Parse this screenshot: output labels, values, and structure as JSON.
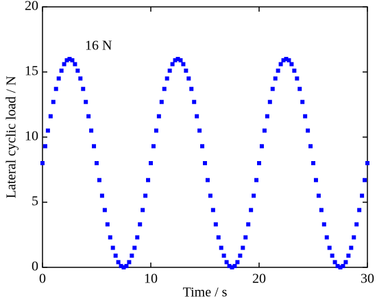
{
  "chart_data": {
    "type": "scatter",
    "x_label": "Time / s",
    "y_label": "Lateral cyclic load / N",
    "annotation": "16 N",
    "xlim": [
      0,
      30
    ],
    "xticks": [
      0,
      10,
      20,
      30
    ],
    "ylim": [
      0,
      20
    ],
    "yticks": [
      0,
      5,
      10,
      15,
      20
    ],
    "color": "#0000ff",
    "x": [
      0,
      0.25,
      0.5,
      0.75,
      1,
      1.25,
      1.5,
      1.75,
      2,
      2.25,
      2.5,
      2.75,
      3,
      3.25,
      3.5,
      3.75,
      4,
      4.25,
      4.5,
      4.75,
      5,
      5.25,
      5.5,
      5.75,
      6,
      6.25,
      6.5,
      6.75,
      7,
      7.25,
      7.5,
      7.75,
      8,
      8.25,
      8.5,
      8.75,
      9,
      9.25,
      9.5,
      9.75,
      10,
      10.25,
      10.5,
      10.75,
      11,
      11.25,
      11.5,
      11.75,
      12,
      12.25,
      12.5,
      12.75,
      13,
      13.25,
      13.5,
      13.75,
      14,
      14.25,
      14.5,
      14.75,
      15,
      15.25,
      15.5,
      15.75,
      16,
      16.25,
      16.5,
      16.75,
      17,
      17.25,
      17.5,
      17.75,
      18,
      18.25,
      18.5,
      18.75,
      19,
      19.25,
      19.5,
      19.75,
      20,
      20.25,
      20.5,
      20.75,
      21,
      21.25,
      21.5,
      21.75,
      22,
      22.25,
      22.5,
      22.75,
      23,
      23.25,
      23.5,
      23.75,
      24,
      24.25,
      24.5,
      24.75,
      25,
      25.25,
      25.5,
      25.75,
      26,
      26.25,
      26.5,
      26.75,
      27,
      27.25,
      27.5,
      27.75,
      28,
      28.25,
      28.5,
      28.75,
      29,
      29.25,
      29.5,
      29.75,
      30
    ],
    "values": [
      8,
      9.3,
      10.5,
      11.6,
      12.7,
      13.7,
      14.5,
      15.1,
      15.6,
      15.9,
      16,
      15.9,
      15.6,
      15.1,
      14.5,
      13.7,
      12.7,
      11.6,
      10.5,
      9.3,
      8,
      6.7,
      5.5,
      4.4,
      3.3,
      2.3,
      1.5,
      0.9,
      0.4,
      0.1,
      0,
      0.1,
      0.4,
      0.9,
      1.5,
      2.3,
      3.3,
      4.4,
      5.5,
      6.7,
      8,
      9.3,
      10.5,
      11.6,
      12.7,
      13.7,
      14.5,
      15.1,
      15.6,
      15.9,
      16,
      15.9,
      15.6,
      15.1,
      14.5,
      13.7,
      12.7,
      11.6,
      10.5,
      9.3,
      8,
      6.7,
      5.5,
      4.4,
      3.3,
      2.3,
      1.5,
      0.9,
      0.4,
      0.1,
      0,
      0.1,
      0.4,
      0.9,
      1.5,
      2.3,
      3.3,
      4.4,
      5.5,
      6.7,
      8,
      9.3,
      10.5,
      11.6,
      12.7,
      13.7,
      14.5,
      15.1,
      15.6,
      15.9,
      16,
      15.9,
      15.6,
      15.1,
      14.5,
      13.7,
      12.7,
      11.6,
      10.5,
      9.3,
      8,
      6.7,
      5.5,
      4.4,
      3.3,
      2.3,
      1.5,
      0.9,
      0.4,
      0.1,
      0,
      0.1,
      0.4,
      0.9,
      1.5,
      2.3,
      3.3,
      4.4,
      5.5,
      6.7,
      8
    ]
  }
}
